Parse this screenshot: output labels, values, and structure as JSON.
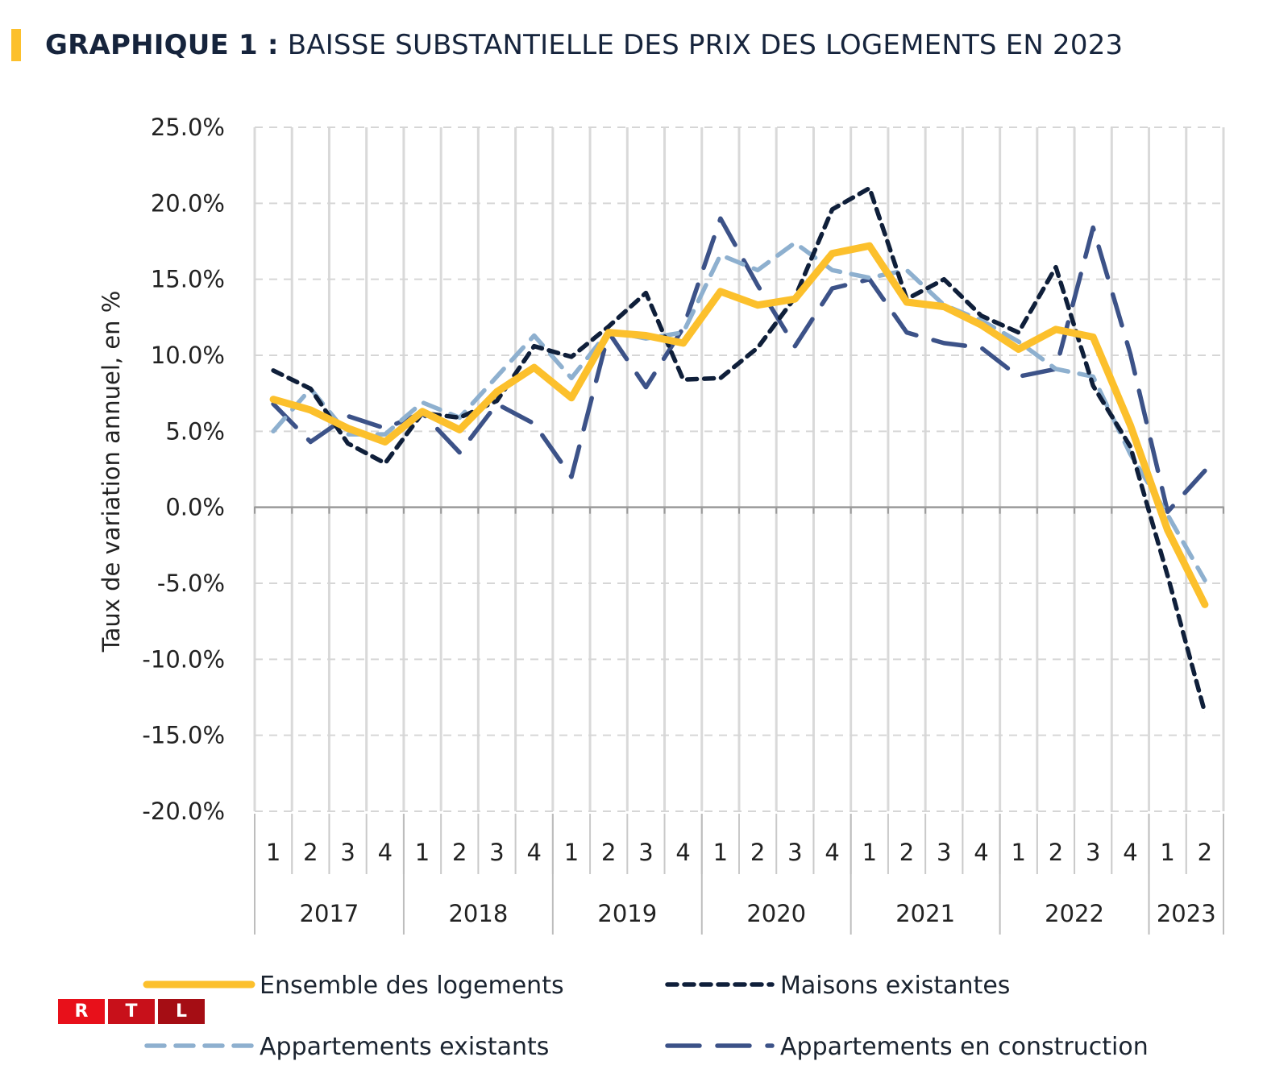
{
  "header": {
    "title_bold": "GRAPHIQUE 1 :",
    "title_rest": "BAISSE SUBSTANTIELLE DES PRIX DES LOGEMENTS EN 2023",
    "accent_color": "#fcc02c"
  },
  "logo": {
    "letters": [
      "R",
      "T",
      "L"
    ],
    "colors": [
      "#e8101a",
      "#c8101a",
      "#a50d14"
    ]
  },
  "chart_data": {
    "type": "line",
    "title": "GRAPHIQUE 1 : BAISSE SUBSTANTIELLE DES PRIX DES LOGEMENTS EN 2023",
    "xlabel": "",
    "ylabel": "Taux de variation annuel, en %",
    "ylim": [
      -20,
      25
    ],
    "yticks": [
      25,
      20,
      15,
      10,
      5,
      0,
      -5,
      -10,
      -15,
      -20
    ],
    "ytick_labels": [
      "25.0%",
      "20.0%",
      "15.0%",
      "10.0%",
      "5.0%",
      "0.0%",
      "-5.0%",
      "-10.0%",
      "-15.0%",
      "-20.0%"
    ],
    "grid": true,
    "x_quarters": [
      "1",
      "2",
      "3",
      "4",
      "1",
      "2",
      "3",
      "4",
      "1",
      "2",
      "3",
      "4",
      "1",
      "2",
      "3",
      "4",
      "1",
      "2",
      "3",
      "4",
      "1",
      "2",
      "3",
      "4",
      "1",
      "2"
    ],
    "x_years": [
      {
        "label": "2017",
        "quarters": 4
      },
      {
        "label": "2018",
        "quarters": 4
      },
      {
        "label": "2019",
        "quarters": 4
      },
      {
        "label": "2020",
        "quarters": 4
      },
      {
        "label": "2021",
        "quarters": 4
      },
      {
        "label": "2022",
        "quarters": 4
      },
      {
        "label": "2023",
        "quarters": 2
      }
    ],
    "legend_position": "bottom",
    "series": [
      {
        "name": "Ensemble des logements",
        "color": "#fcc02c",
        "style": "solid",
        "values": [
          7.1,
          6.4,
          5.2,
          4.3,
          6.3,
          5.1,
          7.6,
          9.2,
          7.2,
          11.5,
          11.3,
          10.8,
          14.2,
          13.3,
          13.7,
          16.7,
          17.2,
          13.5,
          13.2,
          12.0,
          10.4,
          11.7,
          11.2,
          5.4,
          -1.5,
          -6.4
        ]
      },
      {
        "name": "Maisons existantes",
        "color": "#0f1f3a",
        "style": "short-dash",
        "values": [
          9.0,
          7.8,
          4.2,
          2.9,
          6.2,
          5.9,
          7.0,
          10.6,
          9.9,
          11.9,
          14.1,
          8.4,
          8.5,
          10.5,
          13.8,
          19.6,
          21.0,
          13.7,
          15.0,
          12.6,
          11.5,
          15.8,
          8.0,
          4.0,
          -4.5,
          -13.5
        ]
      },
      {
        "name": "Appartements existants",
        "color": "#8eb0cf",
        "style": "dash",
        "values": [
          5.0,
          7.8,
          4.8,
          4.8,
          6.9,
          5.9,
          8.6,
          11.3,
          8.5,
          11.6,
          11.1,
          11.5,
          16.6,
          15.6,
          17.4,
          15.6,
          15.1,
          15.6,
          13.3,
          12.3,
          10.9,
          9.1,
          8.6,
          3.5,
          -0.5,
          -4.8
        ]
      },
      {
        "name": "Appartements en construction",
        "color": "#3c5288",
        "style": "long-dash",
        "values": [
          6.8,
          4.3,
          6.0,
          5.2,
          6.2,
          3.6,
          6.8,
          5.5,
          2.0,
          11.5,
          7.9,
          11.8,
          19.0,
          14.6,
          10.6,
          14.4,
          15.0,
          11.5,
          10.8,
          10.5,
          8.6,
          9.1,
          18.4,
          10.1,
          -0.3,
          2.4
        ]
      }
    ]
  }
}
